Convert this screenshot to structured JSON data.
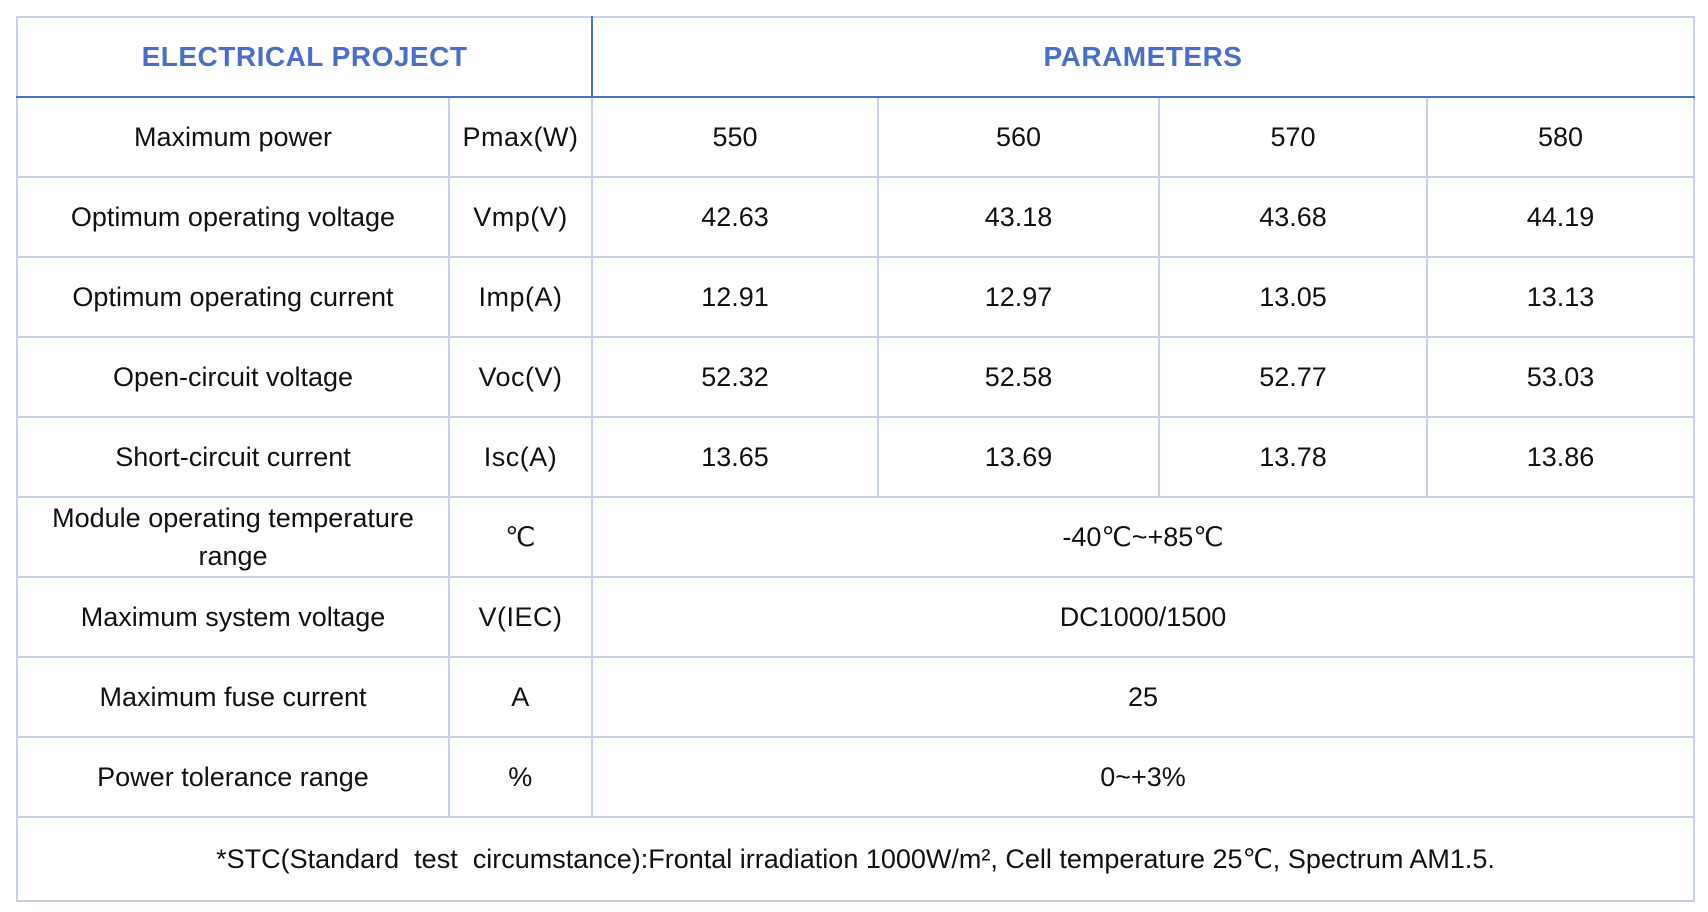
{
  "header": {
    "left": "ELECTRICAL PROJECT",
    "right": "PARAMETERS"
  },
  "rows": [
    {
      "label": "Maximum power",
      "unit": "Pmax(W)",
      "values": [
        "550",
        "560",
        "570",
        "580"
      ]
    },
    {
      "label": "Optimum operating voltage",
      "unit": "Vmp(V)",
      "values": [
        "42.63",
        "43.18",
        "43.68",
        "44.19"
      ]
    },
    {
      "label": "Optimum operating current",
      "unit": "Imp(A)",
      "values": [
        "12.91",
        "12.97",
        "13.05",
        "13.13"
      ]
    },
    {
      "label": "Open-circuit voltage",
      "unit": "Voc(V)",
      "values": [
        "52.32",
        "52.58",
        "52.77",
        "53.03"
      ]
    },
    {
      "label": "Short-circuit current",
      "unit": "Isc(A)",
      "values": [
        "13.65",
        "13.69",
        "13.78",
        "13.86"
      ]
    }
  ],
  "merged_rows": [
    {
      "label": "Module operating temperature range",
      "unit": "℃",
      "value": "-40℃~+85℃"
    },
    {
      "label": "Maximum system voltage",
      "unit": "V(IEC)",
      "value": "DC1000/1500"
    },
    {
      "label": "Maximum fuse current",
      "unit": "A",
      "value": "25"
    },
    {
      "label": "Power tolerance range",
      "unit": "%",
      "value": "0~+3%"
    }
  ],
  "footnote": "*STC(Standard  test  circumstance):Frontal irradiation 1000W/m², Cell temperature 25℃, Spectrum AM1.5.",
  "colors": {
    "header_text": "#4a6fc8",
    "outer_border": "#4a72c8",
    "inner_border": "#c9d3e8"
  }
}
